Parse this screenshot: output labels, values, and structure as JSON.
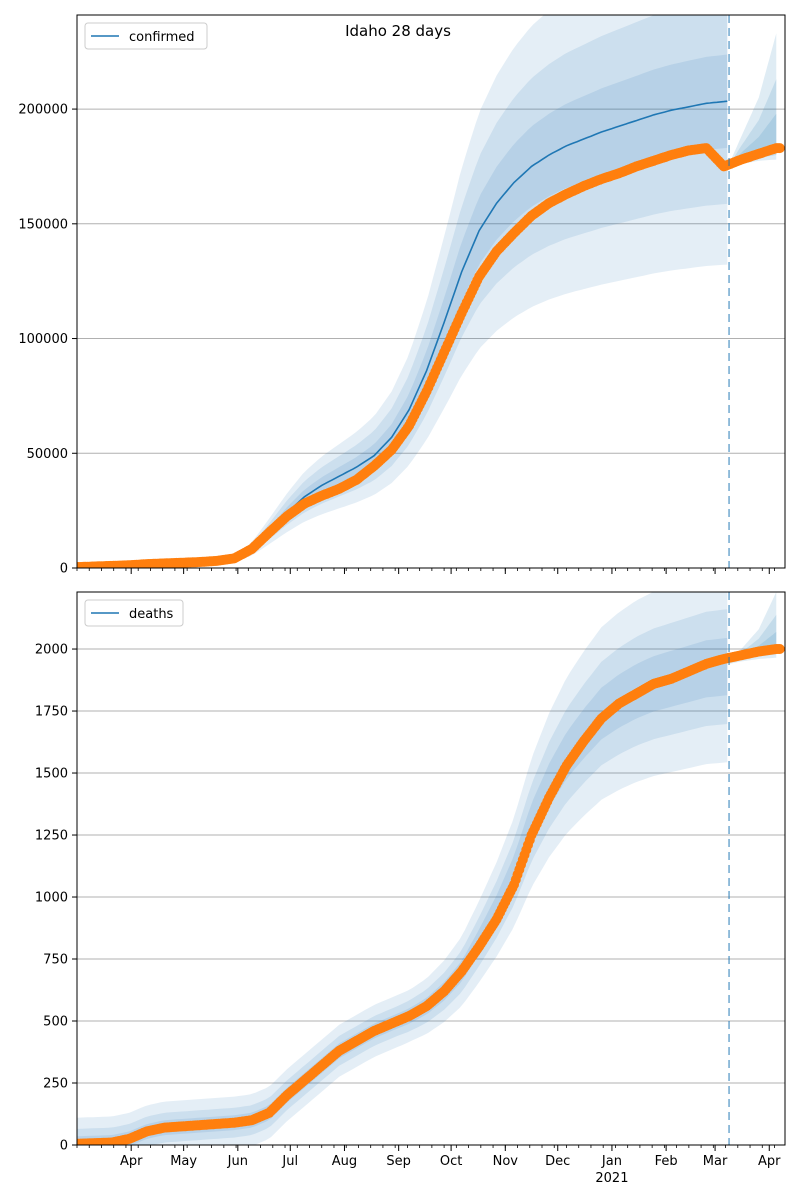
{
  "figure_title": "Idaho 28 days",
  "chart_data": [
    {
      "type": "line",
      "legend": "confirmed",
      "legend_loc": "upper-left",
      "title": "Idaho 28 days",
      "xlabel": "",
      "ylabel": "",
      "ylim": [
        0,
        241000
      ],
      "yticks": [
        0,
        50000,
        100000,
        150000,
        200000
      ],
      "ytick_labels": [
        "0",
        "50000",
        "100000",
        "150000",
        "200000"
      ],
      "forecast_start_day": 373,
      "observed": {
        "days": [
          0,
          30,
          40,
          50,
          60,
          70,
          80,
          90,
          100,
          110,
          120,
          130,
          140,
          150,
          160,
          170,
          180,
          190,
          200,
          210,
          220,
          230,
          240,
          250,
          260,
          270,
          280,
          290,
          300,
          310,
          320,
          330,
          340,
          350,
          360,
          370,
          380,
          390,
          400
        ],
        "values": [
          400,
          1200,
          1700,
          2000,
          2300,
          2600,
          3100,
          4200,
          8300,
          15500,
          22500,
          28000,
          31500,
          34500,
          38500,
          44500,
          51500,
          62000,
          77000,
          94000,
          111000,
          127000,
          138000,
          146000,
          153500,
          159000,
          163000,
          166500,
          169500,
          172000,
          175000,
          177500,
          180000,
          182000,
          183000,
          175000,
          178000,
          180500,
          183000
        ]
      },
      "model": {
        "days": [
          0,
          30,
          40,
          50,
          60,
          70,
          80,
          90,
          100,
          110,
          120,
          130,
          140,
          150,
          160,
          170,
          180,
          190,
          200,
          210,
          220,
          230,
          240,
          250,
          260,
          270,
          280,
          290,
          300,
          310,
          320,
          330,
          340,
          350,
          360,
          373
        ],
        "values": [
          400,
          1200,
          1700,
          2000,
          2300,
          2600,
          3100,
          4200,
          8300,
          16000,
          24000,
          31000,
          36000,
          40000,
          44000,
          49000,
          57000,
          69000,
          86000,
          107000,
          129000,
          147000,
          159000,
          168000,
          175000,
          180000,
          184000,
          187000,
          190000,
          192500,
          195000,
          197500,
          199500,
          201000,
          202500,
          203500
        ]
      },
      "bands_width_fraction": [
        0.35,
        0.22,
        0.1
      ],
      "projection": {
        "days": [
          373,
          380,
          390,
          400
        ],
        "values": [
          175000,
          178000,
          180500,
          183000
        ],
        "upper": [
          176000,
          188000,
          205000,
          233000
        ],
        "lower": [
          174000,
          176000,
          177500,
          178000
        ]
      }
    },
    {
      "type": "line",
      "legend": "deaths",
      "legend_loc": "upper-left",
      "title": "",
      "xlabel": "",
      "ylabel": "",
      "ylim": [
        0,
        2230
      ],
      "yticks": [
        0,
        250,
        500,
        750,
        1000,
        1250,
        1500,
        1750,
        2000
      ],
      "ytick_labels": [
        "0",
        "250",
        "500",
        "750",
        "1000",
        "1250",
        "1500",
        "1750",
        "2000"
      ],
      "forecast_start_day": 373,
      "observed": {
        "days": [
          0,
          20,
          30,
          40,
          50,
          60,
          70,
          80,
          90,
          100,
          110,
          120,
          130,
          140,
          150,
          160,
          170,
          180,
          190,
          200,
          210,
          220,
          230,
          240,
          250,
          260,
          270,
          280,
          290,
          300,
          310,
          320,
          330,
          340,
          350,
          360,
          370,
          380,
          390,
          400
        ],
        "values": [
          5,
          10,
          25,
          55,
          70,
          75,
          80,
          85,
          90,
          100,
          130,
          200,
          260,
          320,
          380,
          420,
          460,
          490,
          520,
          560,
          620,
          700,
          800,
          910,
          1050,
          1250,
          1400,
          1530,
          1630,
          1720,
          1780,
          1820,
          1860,
          1880,
          1910,
          1940,
          1960,
          1975,
          1990,
          2000
        ]
      },
      "band_center": {
        "days": [
          0,
          20,
          30,
          40,
          50,
          60,
          70,
          80,
          90,
          100,
          110,
          120,
          130,
          140,
          150,
          160,
          170,
          180,
          190,
          200,
          210,
          220,
          230,
          240,
          250,
          260,
          270,
          280,
          290,
          300,
          310,
          320,
          330,
          340,
          350,
          360,
          373
        ],
        "values": [
          5,
          10,
          25,
          55,
          70,
          75,
          80,
          85,
          90,
          100,
          130,
          200,
          260,
          320,
          380,
          420,
          460,
          490,
          520,
          560,
          620,
          700,
          820,
          950,
          1100,
          1300,
          1450,
          1570,
          1660,
          1740,
          1790,
          1830,
          1860,
          1880,
          1900,
          1920,
          1930
        ]
      },
      "bands_width_fraction": [
        0.2,
        0.12,
        0.06
      ],
      "bands_min_halfwidth": [
        105,
        60,
        30
      ],
      "projection": {
        "days": [
          373,
          380,
          390,
          400
        ],
        "values": [
          1950,
          1965,
          1985,
          2000
        ],
        "upper": [
          1960,
          2000,
          2080,
          2230
        ],
        "lower": [
          1940,
          1950,
          1960,
          1965
        ]
      }
    }
  ],
  "x_axis": {
    "start_label": "2020-03-01",
    "end_day": 405,
    "major_ticks": [
      {
        "day": 31,
        "label": "Apr"
      },
      {
        "day": 61,
        "label": "May"
      },
      {
        "day": 92,
        "label": "Jun"
      },
      {
        "day": 122,
        "label": "Jul"
      },
      {
        "day": 153,
        "label": "Aug"
      },
      {
        "day": 184,
        "label": "Sep"
      },
      {
        "day": 214,
        "label": "Oct"
      },
      {
        "day": 245,
        "label": "Nov"
      },
      {
        "day": 275,
        "label": "Dec"
      },
      {
        "day": 306,
        "label": "Jan"
      },
      {
        "day": 337,
        "label": "Feb"
      },
      {
        "day": 365,
        "label": "Mar"
      },
      {
        "day": 396,
        "label": "Apr"
      }
    ],
    "year_label": {
      "day": 306,
      "label": "2021"
    }
  },
  "colors": {
    "model_line": "#1f77b4",
    "band": "#1f77b4",
    "observed": "#ff7f0e",
    "grid": "#b0b0b0",
    "forecast_line": "#1f77b4"
  }
}
